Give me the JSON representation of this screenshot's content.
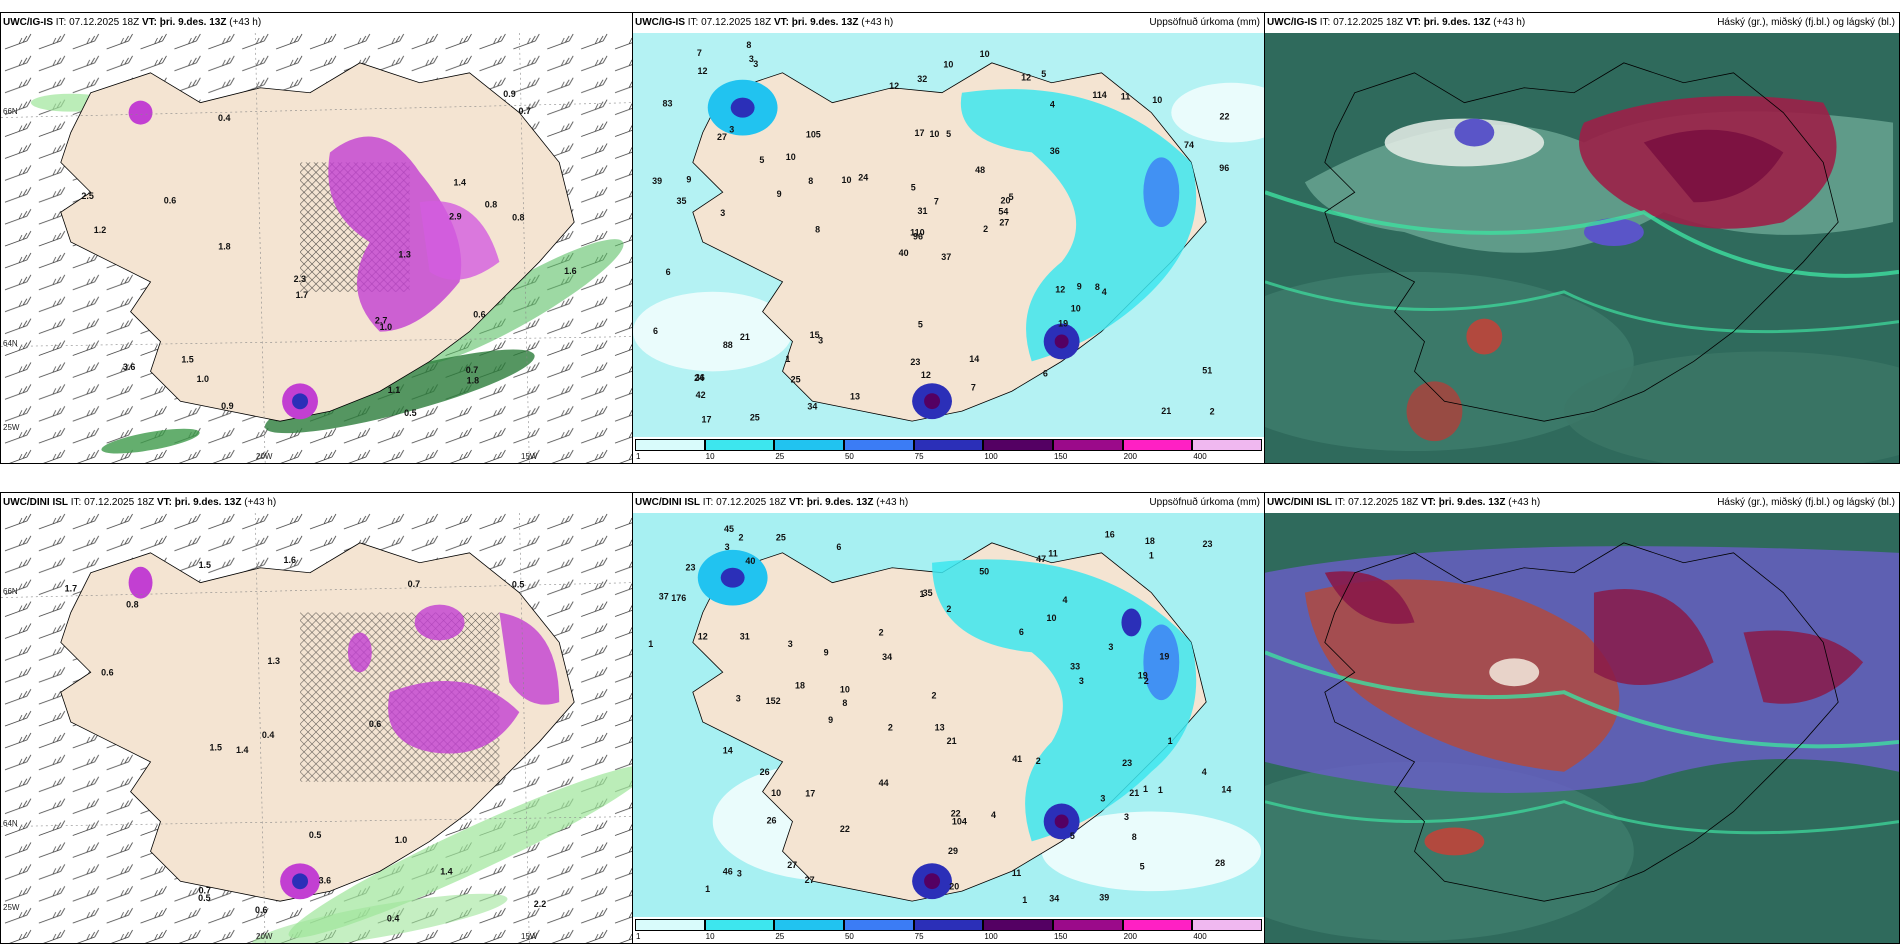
{
  "rows": [
    {
      "model": "UWC/IG-IS",
      "init": "IT: 07.12.2025 18Z",
      "valid_label": "VT:",
      "valid_value": "þri. 9.des. 13Z",
      "lead": "(+43 h)",
      "precip_title": "Uppsöfnuð úrkoma (mm)",
      "cloud_title": "Háský (gr.), miðský (fj.bl.) og lágský (bl.)",
      "wind_labels": [
        "0.5",
        "0.4",
        "1.5",
        "0.6",
        "0.8",
        "1.1",
        "1.6",
        "1.8",
        "1.7",
        "1.0",
        "3.6",
        "2.5",
        "2.3",
        "2.7",
        "2.9",
        "0.9",
        "1.2",
        "0.7",
        "0.6",
        "0.8",
        "0.7",
        "1.0",
        "0.9",
        "1.8",
        "1.3",
        "1.4"
      ],
      "precip_labels": [
        "37",
        "27",
        "96",
        "36",
        "20",
        "3",
        "5",
        "5",
        "4",
        "2",
        "3",
        "2",
        "3",
        "22",
        "40",
        "36",
        "25",
        "17",
        "48",
        "21",
        "24",
        "42",
        "25",
        "10",
        "5",
        "4",
        "3",
        "32",
        "35",
        "12",
        "96",
        "110",
        "23",
        "31",
        "105",
        "114",
        "15",
        "21",
        "51",
        "8",
        "10",
        "10",
        "9",
        "19",
        "34",
        "39",
        "54",
        "17",
        "12",
        "27",
        "88",
        "74",
        "83",
        "10",
        "6",
        "1",
        "3",
        "7",
        "14",
        "10",
        "10",
        "8",
        "9",
        "10",
        "11",
        "8",
        "12",
        "12",
        "7",
        "6",
        "5",
        "13",
        "9",
        "8",
        "24",
        "12",
        "5",
        "6",
        "5",
        "7"
      ]
    },
    {
      "model": "UWC/DINI ISL",
      "init": "IT: 07.12.2025 18Z",
      "valid_label": "VT:",
      "valid_value": "þri. 9.des. 13Z",
      "lead": "(+43 h)",
      "precip_title": "Uppsöfnuð úrkoma (mm)",
      "cloud_title": "Háský (gr.), miðský (fj.bl.) og lágský (bl.)",
      "wind_labels": [
        "0.6",
        "0.4",
        "0.7",
        "1.4",
        "1.5",
        "0.8",
        "1.5",
        "2.2",
        "1.6",
        "1.3",
        "0.5",
        "3.6",
        "0.4",
        "0.5",
        "0.7",
        "0.6",
        "0.6",
        "0.5",
        "1.4",
        "1.7",
        "1.0"
      ],
      "precip_labels": [
        "4",
        "39",
        "104",
        "46",
        "22",
        "9",
        "6",
        "4",
        "1",
        "2",
        "2",
        "1",
        "1",
        "33",
        "27",
        "40",
        "26",
        "27",
        "47",
        "35",
        "12",
        "23",
        "5",
        "3",
        "23",
        "6",
        "3",
        "44",
        "26",
        "18",
        "29",
        "19",
        "28",
        "11",
        "14",
        "152",
        "176",
        "18",
        "8",
        "45",
        "21",
        "10",
        "10",
        "25",
        "50",
        "41",
        "34",
        "10",
        "11",
        "34",
        "9",
        "3",
        "2",
        "1",
        "1",
        "1",
        "3",
        "3",
        "1",
        "1",
        "2",
        "2",
        "37",
        "2",
        "17",
        "23",
        "20",
        "31",
        "22",
        "21",
        "13",
        "14",
        "19",
        "4",
        "8",
        "3",
        "3",
        "5",
        "16",
        "2",
        "3"
      ]
    }
  ],
  "axes": {
    "lat1": "66N",
    "lat2": "64N",
    "lat3": "25W",
    "lon1": "20W",
    "lon2": "15W"
  },
  "colorbar": {
    "ticks": [
      "1",
      "10",
      "25",
      "50",
      "75",
      "100",
      "150",
      "200",
      "400"
    ],
    "colors": [
      "#d9fbfb",
      "#3de6ee",
      "#21c3f0",
      "#3b7cf5",
      "#2b2fb8",
      "#540063",
      "#9b0a8a",
      "#ff20c4",
      "#f0b8f0"
    ]
  }
}
